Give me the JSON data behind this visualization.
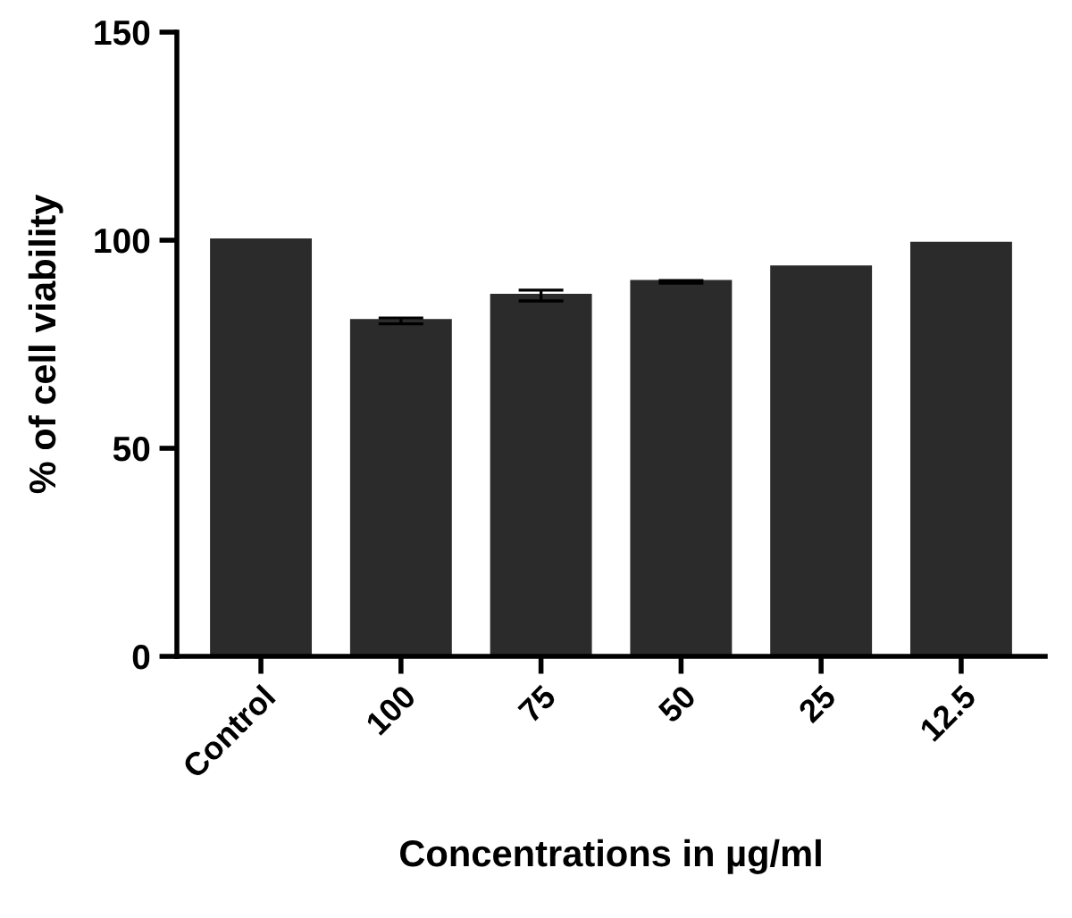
{
  "chart_data": {
    "type": "bar",
    "xlabel": "Concentrations in µg/ml",
    "ylabel": "% of cell viability",
    "categories": [
      "Control",
      "100",
      "75",
      "50",
      "25",
      "12.5"
    ],
    "values": [
      100,
      80.6,
      86.7,
      90.0,
      93.5,
      99.2
    ],
    "errors": [
      null,
      0.7,
      1.3,
      0.3,
      null,
      null
    ],
    "color": "#2b2b2b",
    "ylim": [
      0,
      150
    ],
    "yticks": [
      0,
      50,
      100,
      150
    ],
    "grid": false,
    "legend": false
  }
}
